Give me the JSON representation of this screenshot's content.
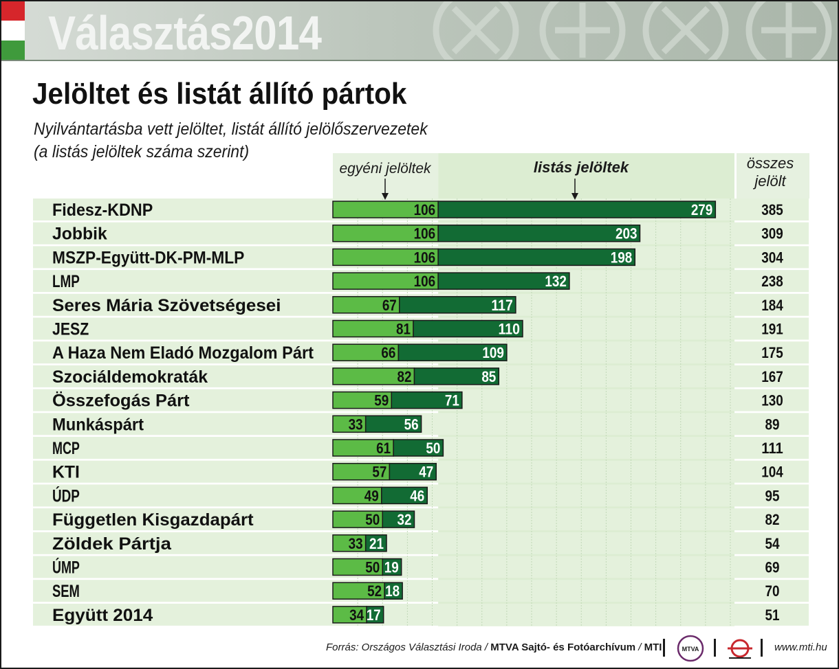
{
  "header": {
    "banner": "Választás2014",
    "flag_colors": [
      "#d6262b",
      "#ffffff",
      "#3f9a3c"
    ]
  },
  "chart_data": {
    "type": "bar",
    "title": "Jelöltet és listát állító pártok",
    "subtitle_line1": "Nyilvántartásba vett jelöltet, listát állító jelölőszervezetek",
    "subtitle_line2": "(a listás jelöltek száma szerint)",
    "stacked": true,
    "orientation": "horizontal",
    "categories": [
      "Fidesz-KDNP",
      "Jobbik",
      "MSZP-Együtt-DK-PM-MLP",
      "LMP",
      "Seres Mária Szövetségesei",
      "JESZ",
      "A Haza Nem Eladó Mozgalom Párt",
      "Szociáldemokraták",
      "Összefogás Párt",
      "Munkáspárt",
      "MCP",
      "KTI",
      "ÚDP",
      "Független Kisgazdapárt",
      "Zöldek Pártja",
      "ÚMP",
      "SEM",
      "Együtt 2014"
    ],
    "series": [
      {
        "name": "egyéni jelöltek",
        "color": "#5cbb46",
        "values": [
          106,
          106,
          106,
          106,
          67,
          81,
          66,
          82,
          59,
          33,
          61,
          57,
          49,
          50,
          33,
          50,
          52,
          34
        ]
      },
      {
        "name": "listás jelöltek",
        "color": "#126b34",
        "values": [
          279,
          203,
          198,
          132,
          117,
          110,
          109,
          85,
          71,
          56,
          50,
          47,
          46,
          32,
          21,
          19,
          18,
          17
        ]
      }
    ],
    "totals_label": "összes jelölt",
    "totals": [
      385,
      309,
      304,
      238,
      184,
      191,
      175,
      167,
      130,
      89,
      111,
      104,
      95,
      82,
      54,
      69,
      70,
      51
    ],
    "xlim": [
      0,
      400
    ],
    "colors": {
      "egyeni": "#5cbb46",
      "listas": "#126b34",
      "row_band": "#e4f1dc",
      "header_band": "#e6f1e0",
      "list_area": "#dcedd2",
      "grid": "#c0d8b6"
    }
  },
  "footer": {
    "source_prefix": "Forrás: Országos Választási Iroda / ",
    "source_bold": "MTVA Sajtó- és Fotóarchívum",
    "source_sep": " / ",
    "source_bold2": "MTI",
    "mtva_logo_text": "MTVA",
    "url": "www.mti.hu"
  }
}
